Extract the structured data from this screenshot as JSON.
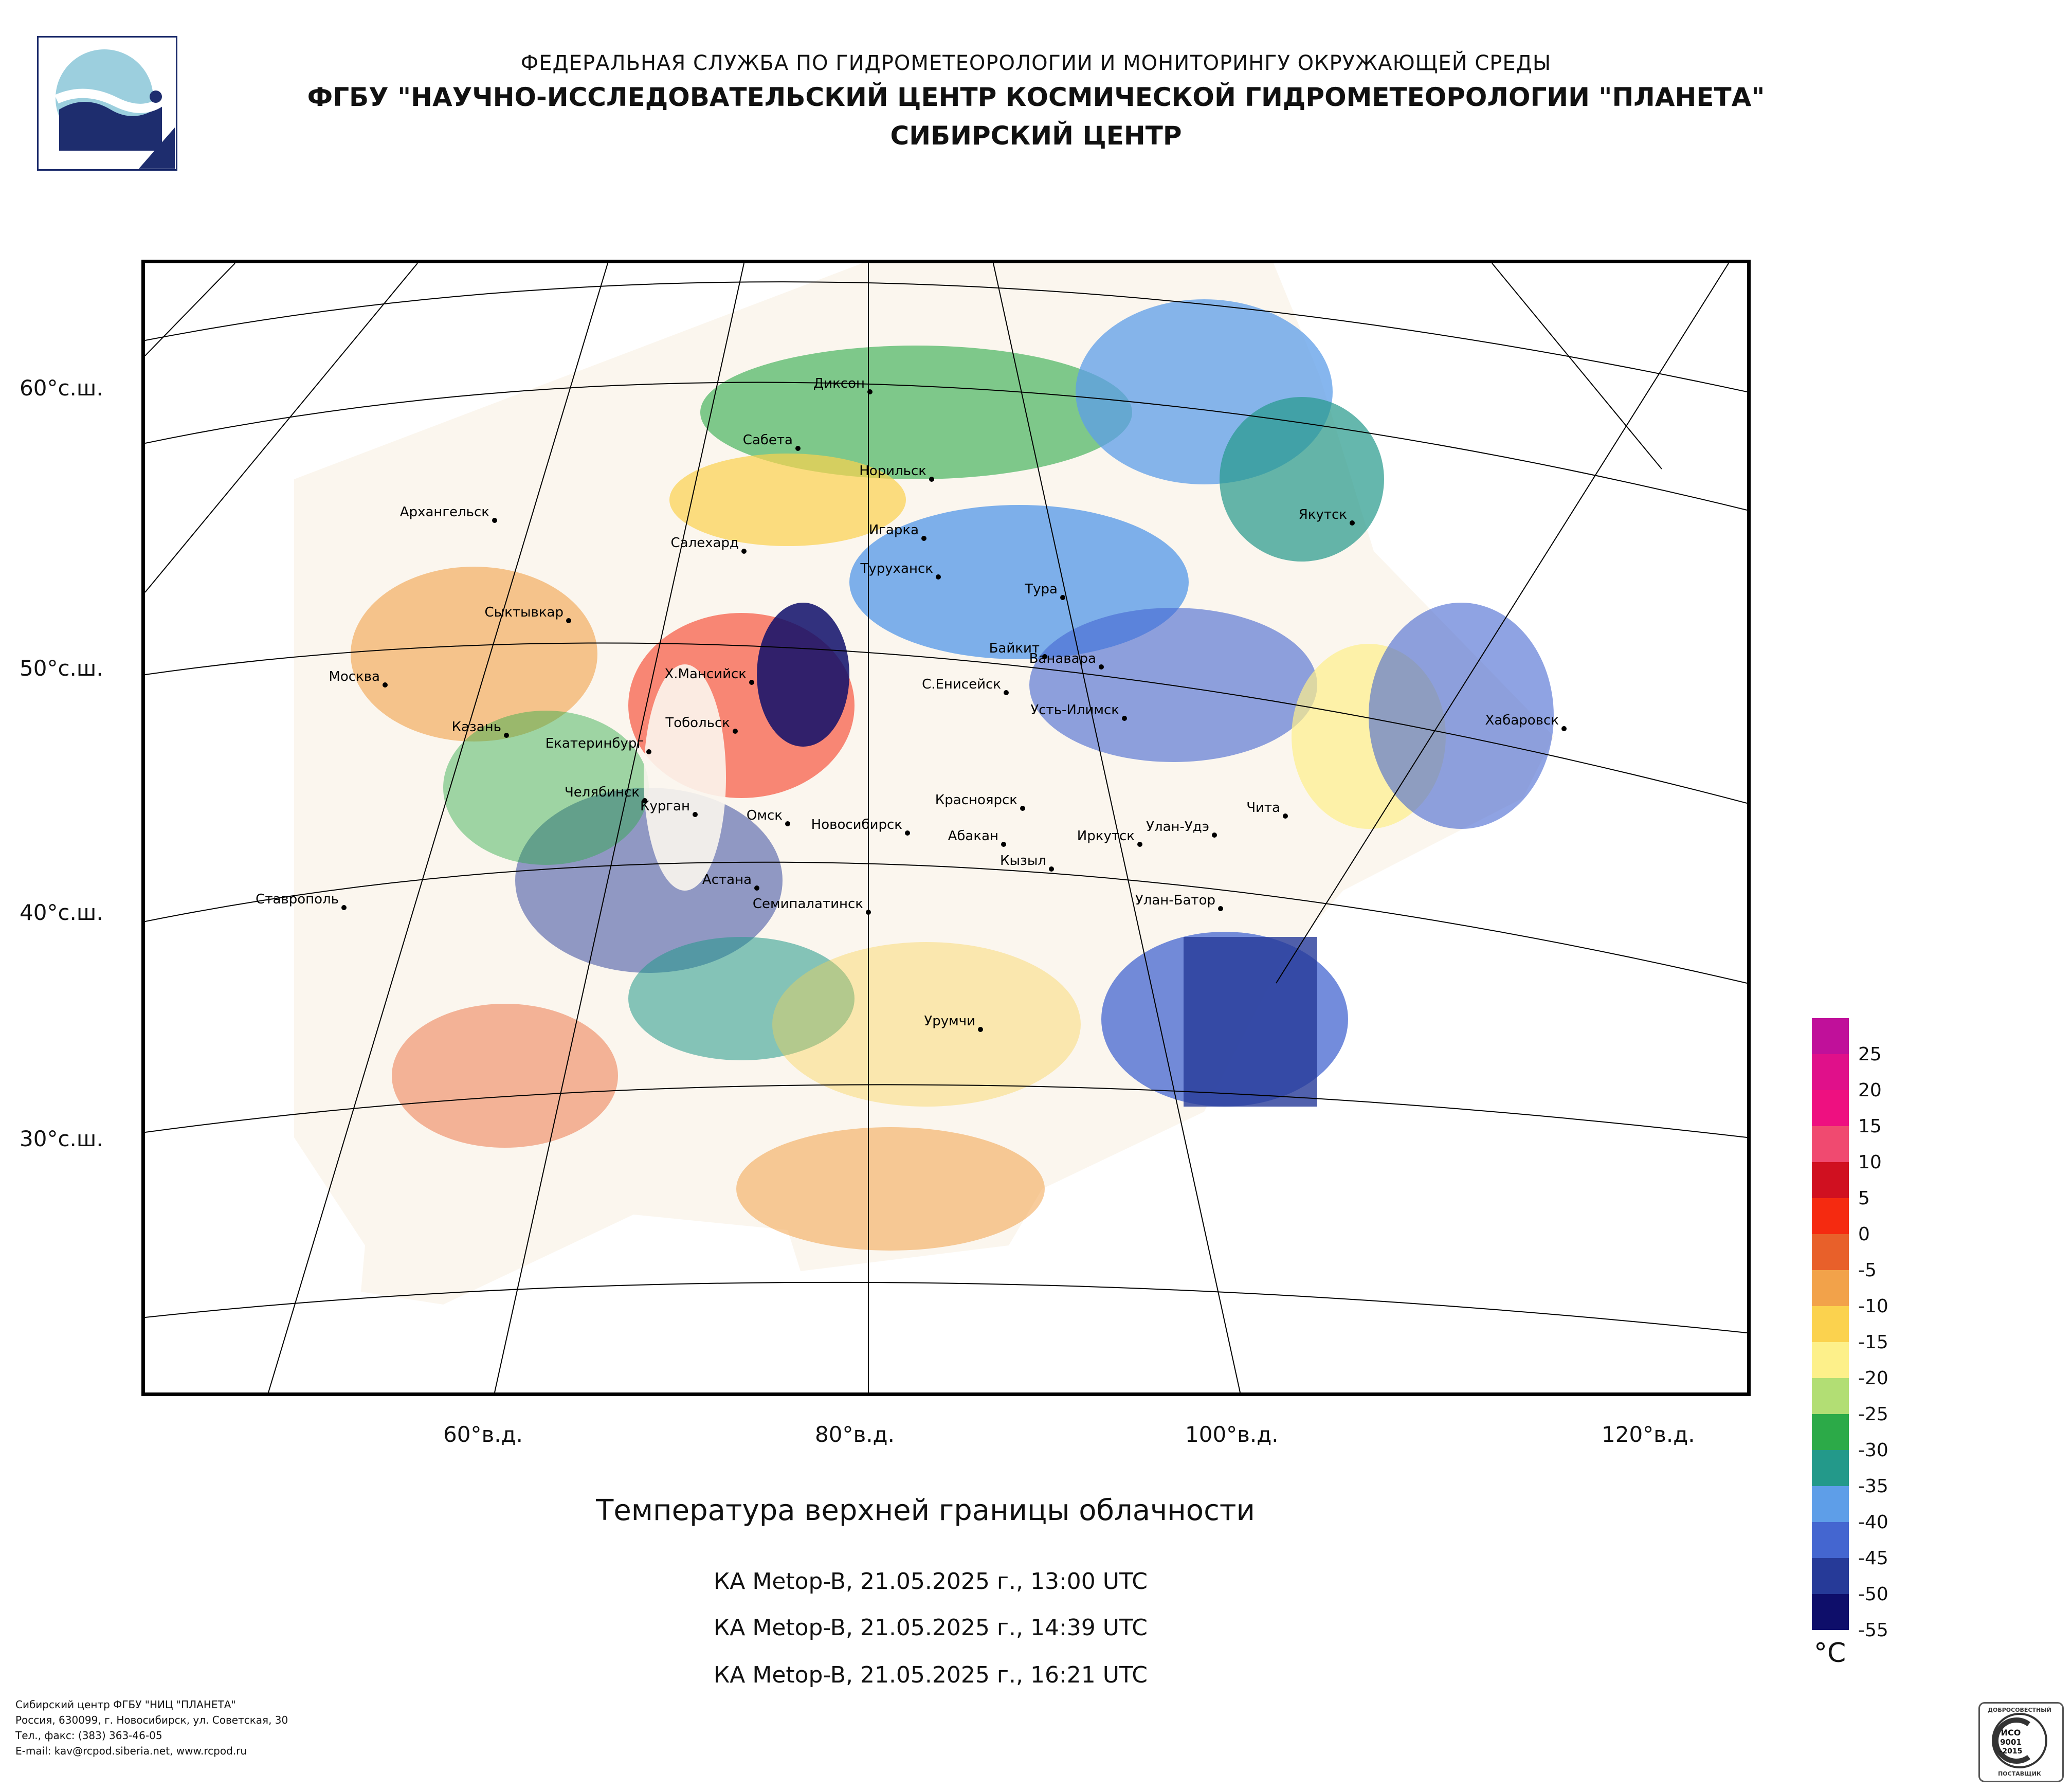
{
  "header": {
    "line1": "ФЕДЕРАЛЬНАЯ СЛУЖБА ПО ГИДРОМЕТЕОРОЛОГИИ И МОНИТОРИНГУ ОКРУЖАЮЩЕЙ СРЕДЫ",
    "line2": "ФГБУ \"НАУЧНО-ИССЛЕДОВАТЕЛЬСКИЙ ЦЕНТР КОСМИЧЕСКОЙ ГИДРОМЕТЕОРОЛОГИИ \"ПЛАНЕТА\"",
    "line3": "СИБИРСКИЙ ЦЕНТР"
  },
  "map": {
    "lat_labels": [
      "60°с.ш.",
      "50°с.ш.",
      "40°с.ш.",
      "30°с.ш."
    ],
    "lon_labels": [
      "60°в.д.",
      "80°в.д.",
      "100°в.д.",
      "120°в.д."
    ],
    "cities": [
      "Диксон",
      "Сабета",
      "Норильск",
      "Архангельск",
      "Салехард",
      "Игарка",
      "Туруханск",
      "Тура",
      "Якутск",
      "Сыктывкар",
      "Байкит",
      "Ванавара",
      "Москва",
      "Х.Мансийск",
      "С.Енисейск",
      "Усть-Илимск",
      "Казань",
      "Тобольск",
      "Екатеринбург",
      "Хабаровск",
      "Челябинск",
      "Красноярск",
      "Курган",
      "Чита",
      "Омск",
      "Новосибирск",
      "Абакан",
      "Улан-Удэ",
      "Иркутск",
      "Кызыл",
      "Астана",
      "Ставрополь",
      "Семипалатинск",
      "Улан-Батор",
      "Урумчи"
    ]
  },
  "title": "Температура верхней границы облачности",
  "passes": [
    "КА Metop-B, 21.05.2025 г., 13:00 UTC",
    "КА Metop-B, 21.05.2025 г., 14:39 UTC",
    "КА Metop-B, 21.05.2025 г., 16:21 UTC"
  ],
  "legend": {
    "unit": "°C",
    "colors": [
      "#c0109a",
      "#e0108a",
      "#ee1080",
      "#f04a70",
      "#d01020",
      "#f52a10",
      "#e8602a",
      "#f2a24a",
      "#fbd24e",
      "#fdf08a",
      "#b2de74",
      "#2caa48",
      "#23998a",
      "#5e9ee8",
      "#4466d0",
      "#263a98",
      "#0e0e6a"
    ],
    "labels": [
      "25",
      "20",
      "15",
      "10",
      "5",
      "0",
      "-5",
      "-10",
      "-15",
      "-20",
      "-25",
      "-30",
      "-35",
      "-40",
      "-45",
      "-50",
      "-55"
    ]
  },
  "footer": {
    "line1": "Сибирский центр ФГБУ \"НИЦ \"ПЛАНЕТА\"",
    "line2": "Россия, 630099, г. Новосибирск, ул. Советская, 30",
    "line3": "Тел., факс: (383) 363-46-05",
    "line4": "E-mail: kav@rcpod.siberia.net, www.rcpod.ru"
  },
  "cert": {
    "arc": "ДОБРОСОВЕСТНЫЙ",
    "line1": "ИСО",
    "line2": "9001",
    "line3": "-2015",
    "bottom": "ПОСТАВЩИК"
  }
}
